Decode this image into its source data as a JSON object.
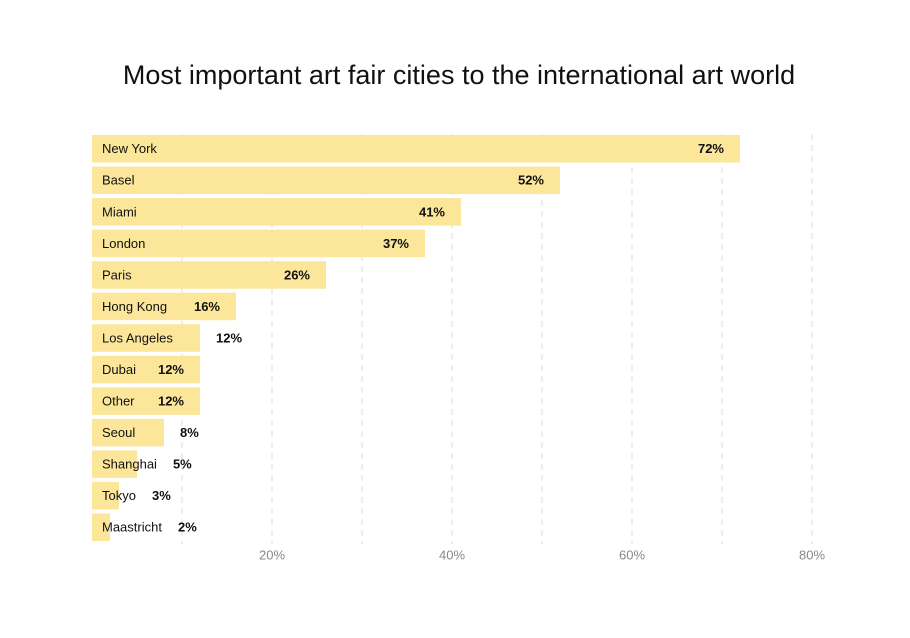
{
  "chart_data": {
    "type": "bar",
    "orientation": "horizontal",
    "title": "Most important art fair cities to the international art world",
    "categories": [
      "New York",
      "Basel",
      "Miami",
      "London",
      "Paris",
      "Hong Kong",
      "Los Angeles",
      "Dubai",
      "Other",
      "Seoul",
      "Shanghai",
      "Tokyo",
      "Maastricht"
    ],
    "values": [
      72,
      52,
      41,
      37,
      26,
      16,
      12,
      12,
      12,
      8,
      5,
      3,
      2
    ],
    "value_labels": [
      "72%",
      "52%",
      "41%",
      "37%",
      "26%",
      "16%",
      "12%",
      "12%",
      "12%",
      "8%",
      "5%",
      "3%",
      "2%"
    ],
    "color": "#fce699",
    "xlim": [
      0,
      80
    ],
    "xticks": [
      {
        "value": 20,
        "label": "20%"
      },
      {
        "value": 40,
        "label": "40%"
      },
      {
        "value": 60,
        "label": "60%"
      },
      {
        "value": 80,
        "label": "80%"
      }
    ],
    "xgrid": [
      10,
      20,
      30,
      40,
      50,
      60,
      70,
      80
    ],
    "grid": true
  }
}
